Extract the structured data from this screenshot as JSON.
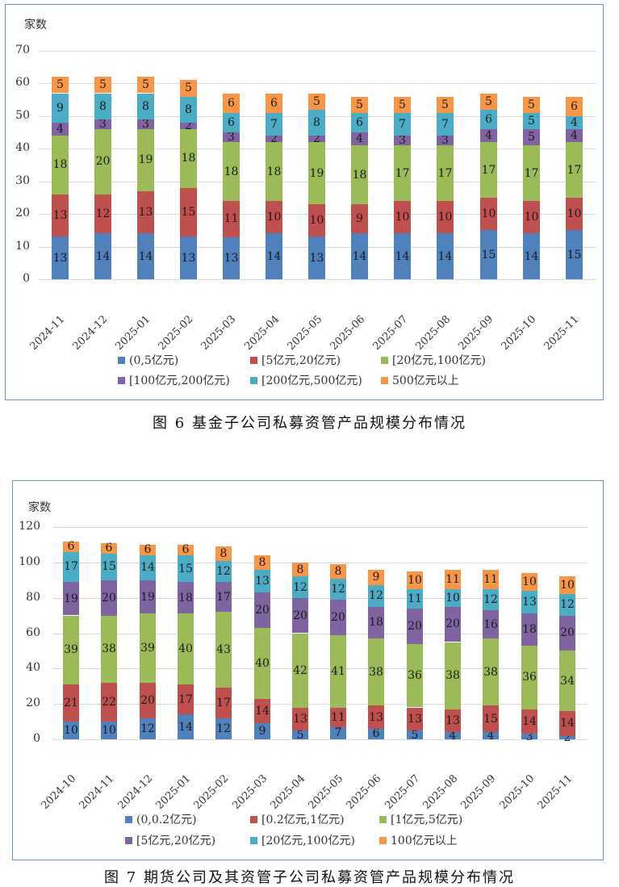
{
  "colors": [
    "#4f81bd",
    "#c0504d",
    "#9bbb59",
    "#8064a2",
    "#4bacc6",
    "#f79646"
  ],
  "figure6": {
    "caption": "图 6   基金子公司私募资管产品规模分布情况",
    "ylabel": "家数",
    "yticks": [
      "0",
      "10",
      "20",
      "30",
      "40",
      "50",
      "60",
      "70"
    ],
    "legend": [
      "(0,5亿元)",
      "[5亿元,20亿元)",
      "[20亿元,100亿元)",
      "[100亿元,200亿元)",
      "[200亿元,500亿元)",
      "500亿元以上"
    ]
  },
  "figure7": {
    "caption": "图 7   期货公司及其资管子公司私募资管产品规模分布情况",
    "ylabel": "家数",
    "yticks": [
      "0",
      "20",
      "40",
      "60",
      "80",
      "100",
      "120"
    ],
    "legend": [
      "(0,0.2亿元)",
      "[0.2亿元,1亿元)",
      "[1亿元,5亿元)",
      "[5亿元,20亿元)",
      "[20亿元,100亿元)",
      "100亿元以上"
    ]
  },
  "chart_data": [
    {
      "type": "bar",
      "stacked": true,
      "title": "图6 基金子公司私募资管产品规模分布情况",
      "xlabel": "",
      "ylabel": "家数",
      "ylim": [
        0,
        70
      ],
      "yticks": [
        0,
        10,
        20,
        30,
        40,
        50,
        60,
        70
      ],
      "grid": true,
      "legend_position": "bottom",
      "categories": [
        "2024-11",
        "2024-12",
        "2025-01",
        "2025-02",
        "2025-03",
        "2025-04",
        "2025-05",
        "2025-06",
        "2025-07",
        "2025-08",
        "2025-09",
        "2025-10",
        "2025-11"
      ],
      "series": [
        {
          "name": "(0,5亿元)",
          "values": [
            13,
            14,
            14,
            13,
            13,
            14,
            13,
            14,
            14,
            14,
            15,
            14,
            15
          ]
        },
        {
          "name": "[5亿元,20亿元)",
          "values": [
            13,
            12,
            13,
            15,
            11,
            10,
            10,
            9,
            10,
            10,
            10,
            10,
            10
          ]
        },
        {
          "name": "[20亿元,100亿元)",
          "values": [
            18,
            20,
            19,
            18,
            18,
            18,
            19,
            18,
            17,
            17,
            17,
            17,
            17
          ]
        },
        {
          "name": "[100亿元,200亿元)",
          "values": [
            4,
            3,
            3,
            2,
            3,
            2,
            2,
            4,
            3,
            3,
            4,
            5,
            4
          ]
        },
        {
          "name": "[200亿元,500亿元)",
          "values": [
            9,
            8,
            8,
            8,
            6,
            7,
            8,
            6,
            7,
            7,
            6,
            5,
            4
          ]
        },
        {
          "name": "500亿元以上",
          "values": [
            5,
            5,
            5,
            5,
            6,
            6,
            5,
            5,
            5,
            5,
            5,
            5,
            6
          ]
        }
      ]
    },
    {
      "type": "bar",
      "stacked": true,
      "title": "图7 期货公司及其资管子公司私募资管产品规模分布情况",
      "xlabel": "",
      "ylabel": "家数",
      "ylim": [
        0,
        120
      ],
      "yticks": [
        0,
        20,
        40,
        60,
        80,
        100,
        120
      ],
      "grid": true,
      "legend_position": "bottom",
      "categories": [
        "2024-10",
        "2024-11",
        "2024-12",
        "2025-01",
        "2025-02",
        "2025-03",
        "2025-04",
        "2025-05",
        "2025-06",
        "2025-07",
        "2025-08",
        "2025-09",
        "2025-10",
        "2025-11"
      ],
      "series": [
        {
          "name": "(0,0.2亿元)",
          "values": [
            10,
            10,
            12,
            14,
            12,
            9,
            5,
            7,
            6,
            5,
            4,
            4,
            3,
            2
          ]
        },
        {
          "name": "[0.2亿元,1亿元)",
          "values": [
            21,
            22,
            20,
            17,
            17,
            14,
            13,
            11,
            13,
            13,
            13,
            15,
            14,
            14
          ]
        },
        {
          "name": "[1亿元,5亿元)",
          "values": [
            39,
            38,
            39,
            40,
            43,
            40,
            42,
            41,
            38,
            36,
            38,
            38,
            36,
            34
          ]
        },
        {
          "name": "[5亿元,20亿元)",
          "values": [
            19,
            20,
            19,
            18,
            17,
            20,
            20,
            20,
            18,
            20,
            20,
            16,
            18,
            20
          ]
        },
        {
          "name": "[20亿元,100亿元)",
          "values": [
            17,
            15,
            14,
            15,
            12,
            13,
            12,
            12,
            12,
            11,
            10,
            12,
            13,
            12
          ]
        },
        {
          "name": "100亿元以上",
          "values": [
            6,
            6,
            6,
            6,
            8,
            8,
            8,
            8,
            9,
            10,
            11,
            11,
            10,
            10
          ]
        }
      ]
    }
  ]
}
